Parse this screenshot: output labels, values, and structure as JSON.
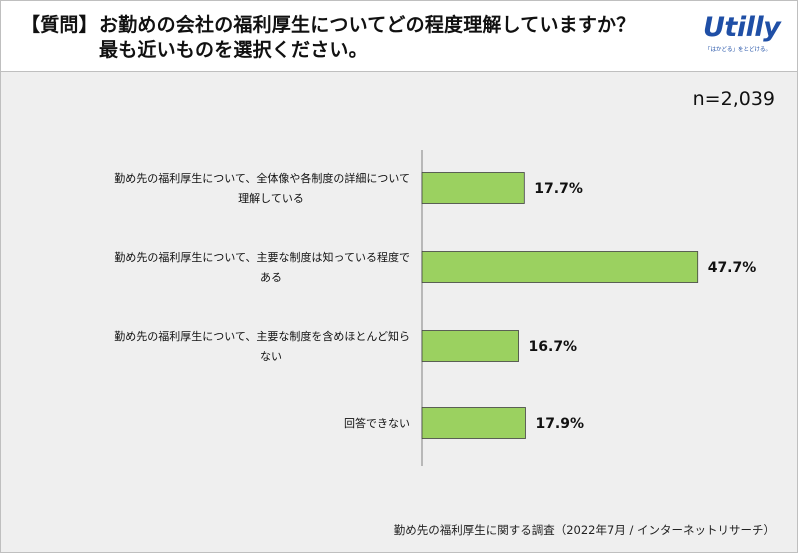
{
  "header": {
    "question_tag": "【質問】",
    "title_line1": "お勤めの会社の福利厚生についてどの程度理解していますか？",
    "title_line2": "最も近いものを選択ください。"
  },
  "logo": {
    "text": "Utilly",
    "tagline": "「はかどる」をとどける。"
  },
  "sample": "n=2,039",
  "footnote": "勤め先の福利厚生に関する調査（2022年7月 / インターネットリサーチ）",
  "colors": {
    "bar": "#9bd160",
    "bar_stroke": "#404040",
    "background": "#efefef",
    "brand": "#1f4fa6"
  },
  "chart_data": {
    "type": "bar",
    "orientation": "horizontal",
    "categories": [
      [
        "勤め先の福利厚生について、全体像や各制度の詳細について",
        "理解している"
      ],
      [
        "勤め先の福利厚生について、主要な制度は知っている程度で",
        "ある"
      ],
      [
        "勤め先の福利厚生について、主要な制度を含めほとんど知ら",
        "ない"
      ],
      [
        "回答できない"
      ]
    ],
    "values": [
      17.7,
      47.7,
      16.7,
      17.9
    ],
    "value_labels": [
      "17.7%",
      "47.7%",
      "16.7%",
      "17.9%"
    ],
    "unit": "%",
    "xlim": [
      0,
      100
    ],
    "grid": false,
    "legend": "none"
  }
}
